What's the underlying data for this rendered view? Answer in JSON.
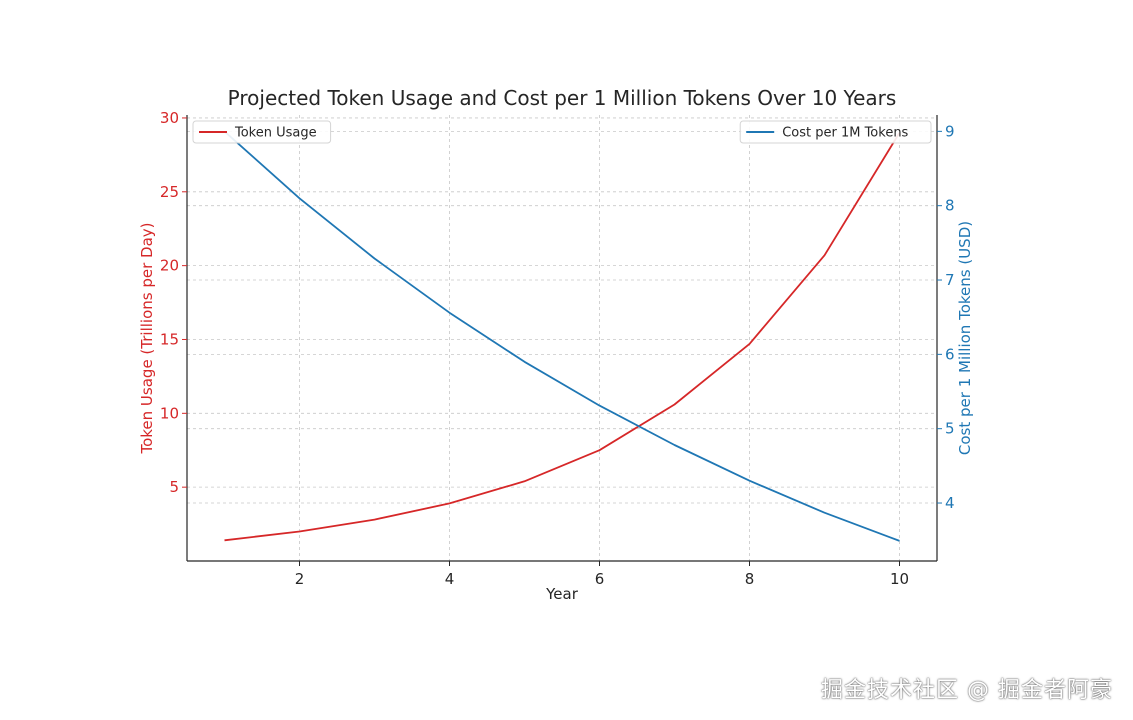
{
  "chart_data": {
    "type": "line",
    "title": "Projected Token Usage and Cost per 1 Million Tokens Over 10 Years",
    "xlabel": "Year",
    "ylabel_left": "Token Usage (Trillions per Day)",
    "ylabel_right": "Cost per 1 Million Tokens (USD)",
    "x": [
      1,
      2,
      3,
      4,
      5,
      6,
      7,
      8,
      9,
      10
    ],
    "xlim": [
      0.5,
      10.5
    ],
    "xticks": [
      2,
      4,
      6,
      8,
      10
    ],
    "ylim_left": [
      0,
      30.2
    ],
    "yticks_left": [
      5,
      10,
      15,
      20,
      25,
      30
    ],
    "ylim_right": [
      3.22,
      9.22
    ],
    "yticks_right": [
      4,
      5,
      6,
      7,
      8,
      9
    ],
    "grid": true,
    "series": [
      {
        "name": "Token Usage",
        "axis": "left",
        "color": "#d62728",
        "values": [
          1.4,
          2.0,
          2.8,
          3.9,
          5.4,
          7.5,
          10.6,
          14.7,
          20.7,
          29.0
        ]
      },
      {
        "name": "Cost per 1M Tokens",
        "axis": "right",
        "color": "#1f77b4",
        "values": [
          9.0,
          8.1,
          7.29,
          6.56,
          5.9,
          5.31,
          4.78,
          4.3,
          3.87,
          3.49
        ]
      }
    ],
    "legends": [
      {
        "series": "Token Usage",
        "placement": "top-left"
      },
      {
        "series": "Cost per 1M Tokens",
        "placement": "top-right"
      }
    ],
    "left_axis_color": "#d62728",
    "right_axis_color": "#1f77b4"
  },
  "watermark": "掘金技术社区 @ 掘金者阿豪"
}
